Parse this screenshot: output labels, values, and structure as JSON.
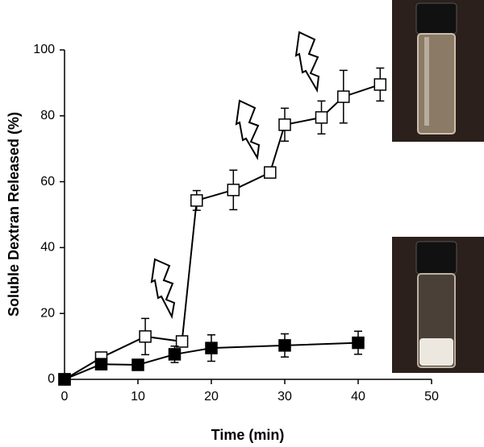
{
  "chart_data": {
    "type": "line",
    "xlabel": "Time (min)",
    "ylabel": "Soluble Dextran Released (%)",
    "xlim": [
      0,
      50
    ],
    "xticks": [
      0,
      10,
      20,
      30,
      40,
      50
    ],
    "ylim": [
      0,
      100
    ],
    "yticks": [
      0,
      20,
      40,
      60,
      80,
      100
    ],
    "grid": false,
    "series": [
      {
        "color": "#000000",
        "marker_fill": "#ffffff",
        "x": [
          0,
          5,
          11,
          16,
          18,
          23,
          28,
          30,
          35,
          38,
          43
        ],
        "values": [
          0,
          6.6,
          13,
          11.5,
          54.3,
          57.5,
          62.8,
          77.3,
          79.5,
          85.8,
          89.5
        ],
        "errors": [
          0,
          1,
          5.5,
          1,
          3,
          6,
          1,
          5,
          5,
          8,
          5
        ]
      },
      {
        "color": "#000000",
        "marker_fill": "#000000",
        "x": [
          0,
          5,
          10,
          15,
          20,
          30,
          40
        ],
        "values": [
          0,
          4.6,
          4.4,
          7.6,
          9.5,
          10.3,
          11.1
        ],
        "errors": [
          0,
          1,
          0.5,
          2.5,
          4,
          3.5,
          3.5
        ]
      }
    ]
  }
}
